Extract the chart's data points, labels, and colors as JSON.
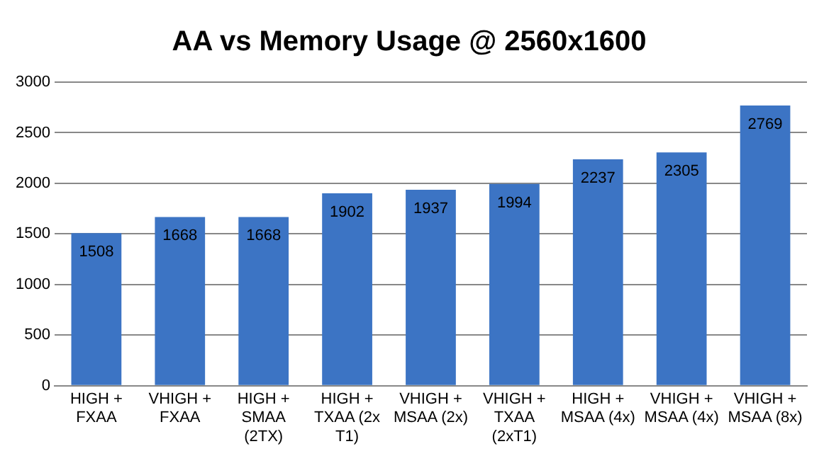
{
  "chart_data": {
    "type": "bar",
    "title": "AA vs Memory Usage @ 2560x1600",
    "categories": [
      "HIGH + FXAA",
      "VHIGH + FXAA",
      "HIGH + SMAA (2TX)",
      "HIGH + TXAA (2x T1)",
      "VHIGH + MSAA (2x)",
      "VHIGH + TXAA (2xT1)",
      "HIGH + MSAA (4x)",
      "VHIGH + MSAA (4x)",
      "VHIGH + MSAA (8x)"
    ],
    "values": [
      1508,
      1668,
      1668,
      1902,
      1937,
      1994,
      2237,
      2305,
      2769
    ],
    "color": "#3c74c4",
    "ylim": [
      0,
      3000
    ],
    "yticks": [
      0,
      500,
      1000,
      1500,
      2000,
      2500,
      3000
    ],
    "grid": "y",
    "data_labels": true,
    "legend": false
  }
}
